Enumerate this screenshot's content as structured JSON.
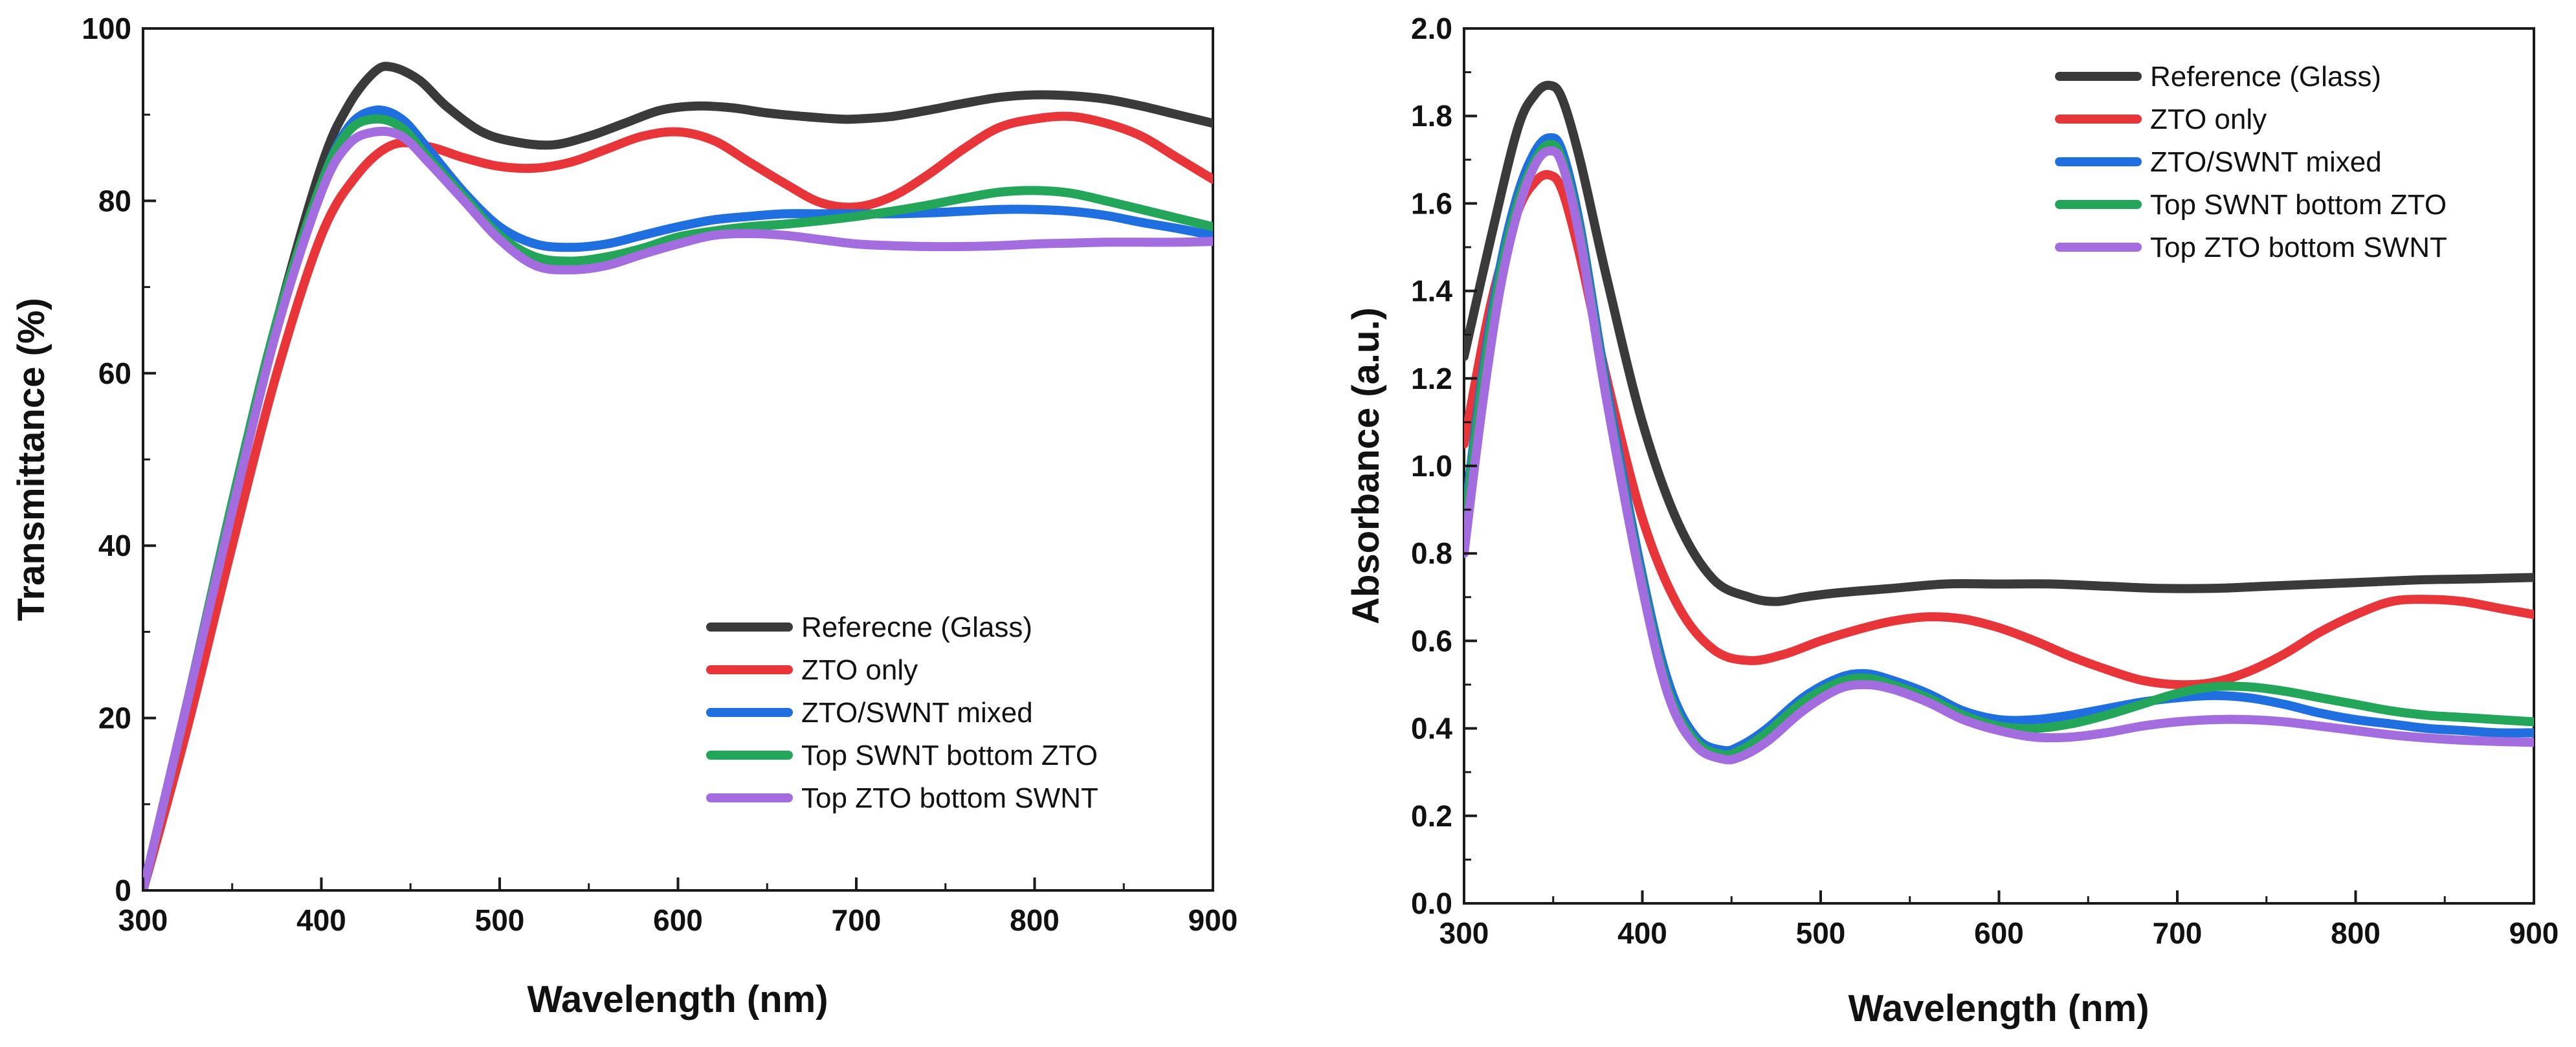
{
  "chart_data": [
    {
      "type": "line",
      "title": "",
      "xlabel": "Wavelength (nm)",
      "ylabel": "Transmittance (%)",
      "xlim": [
        300,
        900
      ],
      "ylim": [
        0,
        100
      ],
      "xticks": [
        300,
        400,
        500,
        600,
        700,
        800,
        900
      ],
      "yticks": [
        0,
        20,
        40,
        60,
        80,
        100
      ],
      "grid": false,
      "legend_position": "bottom-right",
      "series": [
        {
          "name": "Referecne (Glass)",
          "color": "#3a3a3a",
          "x": [
            300,
            325,
            350,
            375,
            400,
            415,
            430,
            440,
            455,
            470,
            490,
            510,
            530,
            550,
            570,
            590,
            610,
            630,
            650,
            670,
            690,
            700,
            720,
            740,
            760,
            780,
            800,
            820,
            840,
            860,
            880,
            900
          ],
          "y": [
            0,
            22,
            45,
            66,
            84,
            91,
            95,
            95.5,
            94,
            91,
            88,
            86.8,
            86.5,
            87.5,
            89,
            90.5,
            91,
            90.8,
            90.2,
            89.8,
            89.5,
            89.5,
            89.8,
            90.5,
            91.3,
            92,
            92.3,
            92.2,
            91.8,
            91,
            90,
            89
          ]
        },
        {
          "name": "ZTO only",
          "color": "#e8353a",
          "x": [
            300,
            325,
            350,
            375,
            400,
            420,
            440,
            460,
            480,
            500,
            520,
            540,
            560,
            580,
            600,
            620,
            640,
            660,
            680,
            700,
            720,
            740,
            760,
            780,
            800,
            820,
            840,
            860,
            880,
            900
          ],
          "y": [
            0,
            19,
            40,
            60,
            76,
            83,
            86.5,
            86.3,
            85,
            84,
            83.8,
            84.5,
            86,
            87.5,
            88,
            87,
            84.5,
            82,
            79.8,
            79.3,
            80.5,
            83,
            86,
            88.5,
            89.5,
            89.8,
            89,
            87.5,
            85,
            82.5
          ]
        },
        {
          "name": "ZTO/SWNT mixed",
          "color": "#1f6fe0",
          "x": [
            300,
            325,
            350,
            375,
            400,
            415,
            430,
            445,
            460,
            480,
            500,
            520,
            540,
            560,
            580,
            600,
            620,
            640,
            660,
            680,
            700,
            720,
            740,
            760,
            780,
            800,
            820,
            840,
            860,
            880,
            900
          ],
          "y": [
            0,
            22,
            45,
            66,
            82,
            88.5,
            90.5,
            89.5,
            86,
            81,
            77,
            75,
            74.6,
            75,
            76,
            77,
            77.8,
            78.2,
            78.5,
            78.5,
            78.5,
            78.5,
            78.6,
            78.8,
            79,
            79,
            78.8,
            78.3,
            77.5,
            76.8,
            76
          ]
        },
        {
          "name": "Top SWNT bottom ZTO",
          "color": "#23a65a",
          "x": [
            300,
            325,
            350,
            375,
            400,
            415,
            430,
            445,
            460,
            480,
            500,
            520,
            540,
            560,
            580,
            600,
            620,
            640,
            660,
            680,
            700,
            720,
            740,
            760,
            780,
            800,
            820,
            840,
            860,
            880,
            900
          ],
          "y": [
            0,
            22,
            45,
            66,
            82,
            88,
            89.5,
            88.5,
            85,
            80.5,
            76,
            73.5,
            73,
            73.5,
            74.5,
            75.8,
            76.5,
            77,
            77.3,
            77.7,
            78.2,
            78.8,
            79.5,
            80.3,
            81,
            81.2,
            80.9,
            80,
            79,
            78,
            77
          ]
        },
        {
          "name": "Top ZTO bottom SWNT",
          "color": "#a36de0",
          "x": [
            300,
            325,
            350,
            375,
            400,
            415,
            430,
            445,
            460,
            480,
            500,
            520,
            540,
            560,
            580,
            600,
            620,
            640,
            660,
            680,
            700,
            720,
            740,
            760,
            780,
            800,
            820,
            840,
            860,
            880,
            900
          ],
          "y": [
            0,
            22,
            44,
            65,
            81,
            86.5,
            88,
            87.5,
            84.5,
            80,
            75.5,
            72.5,
            72,
            72.5,
            73.8,
            75,
            76,
            76.2,
            76,
            75.5,
            75,
            74.8,
            74.7,
            74.7,
            74.8,
            75,
            75.1,
            75.2,
            75.2,
            75.2,
            75.3
          ]
        }
      ],
      "legend": [
        {
          "label": "Referecne (Glass)",
          "color": "#3a3a3a"
        },
        {
          "label": "ZTO only",
          "color": "#e8353a"
        },
        {
          "label": "ZTO/SWNT mixed",
          "color": "#1f6fe0"
        },
        {
          "label": "Top SWNT bottom ZTO",
          "color": "#23a65a"
        },
        {
          "label": "Top ZTO bottom SWNT",
          "color": "#a36de0"
        }
      ]
    },
    {
      "type": "line",
      "title": "",
      "xlabel": "Wavelength (nm)",
      "ylabel": "Absorbance (a.u.)",
      "xlim": [
        300,
        900
      ],
      "ylim": [
        0.0,
        2.0
      ],
      "xticks": [
        300,
        400,
        500,
        600,
        700,
        800,
        900
      ],
      "yticks": [
        0.0,
        0.2,
        0.4,
        0.6,
        0.8,
        1.0,
        1.2,
        1.4,
        1.6,
        1.8,
        2.0
      ],
      "grid": false,
      "legend_position": "top-right",
      "series": [
        {
          "name": "Reference (Glass)",
          "color": "#3a3a3a",
          "x": [
            300,
            315,
            330,
            340,
            348,
            355,
            365,
            380,
            400,
            420,
            440,
            460,
            475,
            490,
            510,
            540,
            570,
            600,
            630,
            660,
            690,
            720,
            750,
            780,
            810,
            840,
            870,
            900
          ],
          "y": [
            1.25,
            1.52,
            1.77,
            1.85,
            1.87,
            1.84,
            1.7,
            1.43,
            1.1,
            0.87,
            0.74,
            0.7,
            0.69,
            0.7,
            0.71,
            0.72,
            0.73,
            0.73,
            0.73,
            0.725,
            0.72,
            0.72,
            0.725,
            0.73,
            0.735,
            0.74,
            0.742,
            0.745
          ]
        },
        {
          "name": "ZTO only",
          "color": "#e8353a",
          "x": [
            300,
            315,
            330,
            340,
            348,
            355,
            365,
            380,
            400,
            420,
            440,
            460,
            480,
            500,
            520,
            540,
            560,
            580,
            600,
            620,
            640,
            660,
            680,
            700,
            720,
            740,
            760,
            780,
            800,
            820,
            840,
            860,
            880,
            900
          ],
          "y": [
            1.05,
            1.37,
            1.58,
            1.65,
            1.665,
            1.63,
            1.48,
            1.2,
            0.88,
            0.68,
            0.58,
            0.555,
            0.57,
            0.6,
            0.625,
            0.645,
            0.655,
            0.65,
            0.63,
            0.6,
            0.565,
            0.535,
            0.51,
            0.5,
            0.505,
            0.53,
            0.57,
            0.62,
            0.66,
            0.69,
            0.695,
            0.69,
            0.675,
            0.66
          ]
        },
        {
          "name": "ZTO/SWNT mixed",
          "color": "#1f6fe0",
          "x": [
            300,
            310,
            320,
            330,
            340,
            348,
            355,
            365,
            380,
            400,
            415,
            430,
            445,
            455,
            470,
            490,
            510,
            525,
            540,
            560,
            580,
            600,
            620,
            640,
            660,
            680,
            700,
            720,
            740,
            760,
            780,
            800,
            820,
            840,
            860,
            880,
            900
          ],
          "y": [
            0.87,
            1.2,
            1.45,
            1.62,
            1.72,
            1.75,
            1.72,
            1.55,
            1.18,
            0.75,
            0.5,
            0.38,
            0.35,
            0.36,
            0.4,
            0.47,
            0.515,
            0.525,
            0.51,
            0.48,
            0.44,
            0.42,
            0.42,
            0.43,
            0.445,
            0.46,
            0.47,
            0.475,
            0.47,
            0.455,
            0.435,
            0.42,
            0.41,
            0.4,
            0.395,
            0.39,
            0.39
          ]
        },
        {
          "name": "Top SWNT bottom ZTO",
          "color": "#23a65a",
          "x": [
            300,
            310,
            320,
            330,
            340,
            348,
            355,
            365,
            380,
            400,
            415,
            430,
            445,
            455,
            470,
            490,
            510,
            525,
            540,
            560,
            580,
            600,
            620,
            640,
            660,
            680,
            700,
            720,
            740,
            760,
            780,
            800,
            820,
            840,
            860,
            880,
            900
          ],
          "y": [
            0.85,
            1.18,
            1.43,
            1.6,
            1.7,
            1.735,
            1.7,
            1.53,
            1.16,
            0.73,
            0.48,
            0.37,
            0.34,
            0.35,
            0.39,
            0.46,
            0.505,
            0.515,
            0.5,
            0.47,
            0.43,
            0.405,
            0.4,
            0.41,
            0.43,
            0.455,
            0.48,
            0.495,
            0.495,
            0.485,
            0.47,
            0.455,
            0.44,
            0.43,
            0.425,
            0.42,
            0.415
          ]
        },
        {
          "name": "Top ZTO bottom SWNT",
          "color": "#a36de0",
          "x": [
            300,
            310,
            320,
            330,
            340,
            348,
            355,
            365,
            380,
            400,
            415,
            430,
            445,
            455,
            470,
            490,
            510,
            525,
            540,
            560,
            580,
            600,
            620,
            640,
            660,
            680,
            700,
            720,
            740,
            760,
            780,
            800,
            820,
            840,
            860,
            880,
            900
          ],
          "y": [
            0.8,
            1.13,
            1.4,
            1.58,
            1.69,
            1.72,
            1.69,
            1.52,
            1.15,
            0.72,
            0.47,
            0.36,
            0.33,
            0.335,
            0.37,
            0.44,
            0.49,
            0.5,
            0.49,
            0.46,
            0.42,
            0.395,
            0.38,
            0.38,
            0.39,
            0.405,
            0.415,
            0.42,
            0.42,
            0.415,
            0.405,
            0.395,
            0.385,
            0.378,
            0.373,
            0.37,
            0.368
          ]
        }
      ],
      "legend": [
        {
          "label": "Reference (Glass)",
          "color": "#3a3a3a"
        },
        {
          "label": "ZTO only",
          "color": "#e8353a"
        },
        {
          "label": "ZTO/SWNT mixed",
          "color": "#1f6fe0"
        },
        {
          "label": "Top SWNT bottom ZTO",
          "color": "#23a65a"
        },
        {
          "label": "Top ZTO bottom SWNT",
          "color": "#a36de0"
        }
      ]
    }
  ]
}
